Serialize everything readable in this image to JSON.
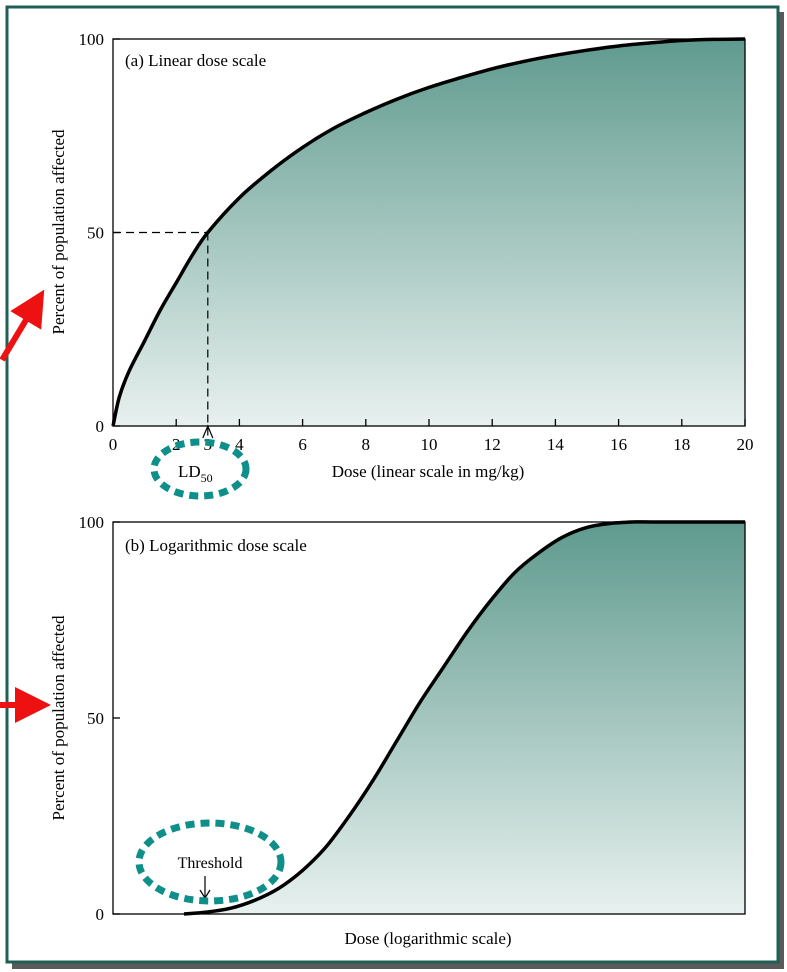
{
  "colors": {
    "frame": "#1f5f55",
    "fill_top": "#5f9a8e",
    "fill_bottom": "#e8f1ef",
    "curve": "#000000",
    "highlight": "#0e8f8a",
    "arrow": "#ee1111"
  },
  "chart_data": [
    {
      "type": "area",
      "title": "(a) Linear dose scale",
      "xlabel": "Dose (linear scale in mg/kg)",
      "ylabel": "Percent of population affected",
      "xlim": [
        0,
        20
      ],
      "ylim": [
        0,
        100
      ],
      "x_ticks": [
        "0",
        "2",
        "3",
        "4",
        "6",
        "8",
        "10",
        "12",
        "14",
        "16",
        "18",
        "20"
      ],
      "x_tick_values": [
        0,
        2,
        3,
        4,
        6,
        8,
        10,
        12,
        14,
        16,
        18,
        20
      ],
      "y_ticks": [
        "0",
        "50",
        "100"
      ],
      "y_tick_values": [
        0,
        50,
        100
      ],
      "x": [
        0,
        0.2,
        0.5,
        1,
        1.5,
        2,
        2.5,
        3,
        4,
        5,
        6,
        7,
        8,
        9,
        10,
        11,
        12,
        13,
        14,
        15,
        16,
        17,
        18,
        19,
        20
      ],
      "y": [
        0,
        7.5,
        14,
        22,
        30,
        37,
        44,
        50,
        59,
        66,
        72,
        77,
        81,
        84.5,
        87.5,
        90,
        92.3,
        94.2,
        95.8,
        97.1,
        98.2,
        99,
        99.6,
        99.9,
        100
      ],
      "marker": {
        "label": "LD",
        "subscript": "50",
        "x": 3,
        "y": 50
      },
      "grid": false
    },
    {
      "type": "area",
      "title": "(b) Logarithmic dose scale",
      "xlabel": "Dose (logarithmic scale)",
      "ylabel": "Percent of population affected",
      "ylim": [
        0,
        100
      ],
      "x_scale": "log",
      "y_ticks": [
        "0",
        "50",
        "100"
      ],
      "y_tick_values": [
        0,
        50,
        100
      ],
      "relative_position": [
        0,
        0.05,
        0.1,
        0.15,
        0.2,
        0.25,
        0.3,
        0.35,
        0.4,
        0.45,
        0.5,
        0.55,
        0.6,
        0.65,
        0.7,
        0.75,
        0.8,
        0.85,
        0.9,
        0.95,
        1
      ],
      "y": [
        0,
        0.5,
        1.5,
        3.5,
        6.5,
        11,
        17,
        25,
        34,
        44,
        54,
        63,
        72,
        80,
        87,
        92,
        96,
        98.5,
        99.6,
        100,
        100
      ],
      "annotation": {
        "label": "Threshold"
      },
      "grid": false
    }
  ]
}
